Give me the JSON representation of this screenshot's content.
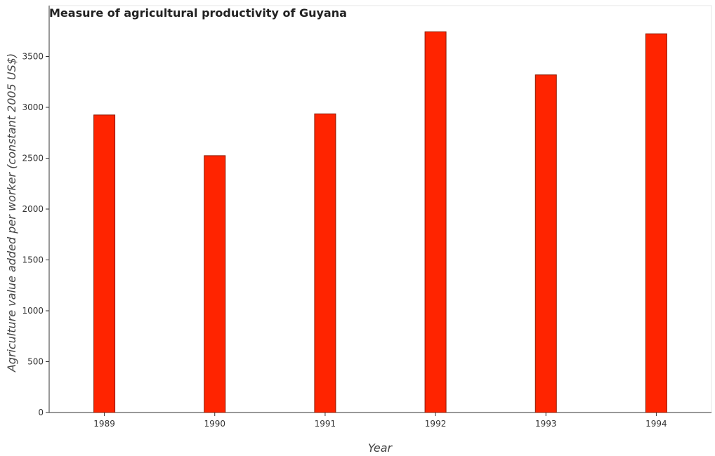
{
  "chart_data": {
    "type": "bar",
    "title": "Measure of agricultural productivity of Guyana",
    "xlabel": "Year",
    "ylabel": "Agriculture value added per worker (constant 2005 US$)",
    "categories": [
      "1989",
      "1990",
      "1991",
      "1992",
      "1993",
      "1994"
    ],
    "values": [
      2925,
      2525,
      2936,
      3743,
      3319,
      3723
    ],
    "ylim": [
      0,
      4000
    ],
    "yticks": [
      0,
      500,
      1000,
      1500,
      2000,
      2500,
      3000,
      3500
    ],
    "bar_color": "#ff2400",
    "bar_edge_color": "#8b1a00",
    "grid": false,
    "legend": "none"
  }
}
